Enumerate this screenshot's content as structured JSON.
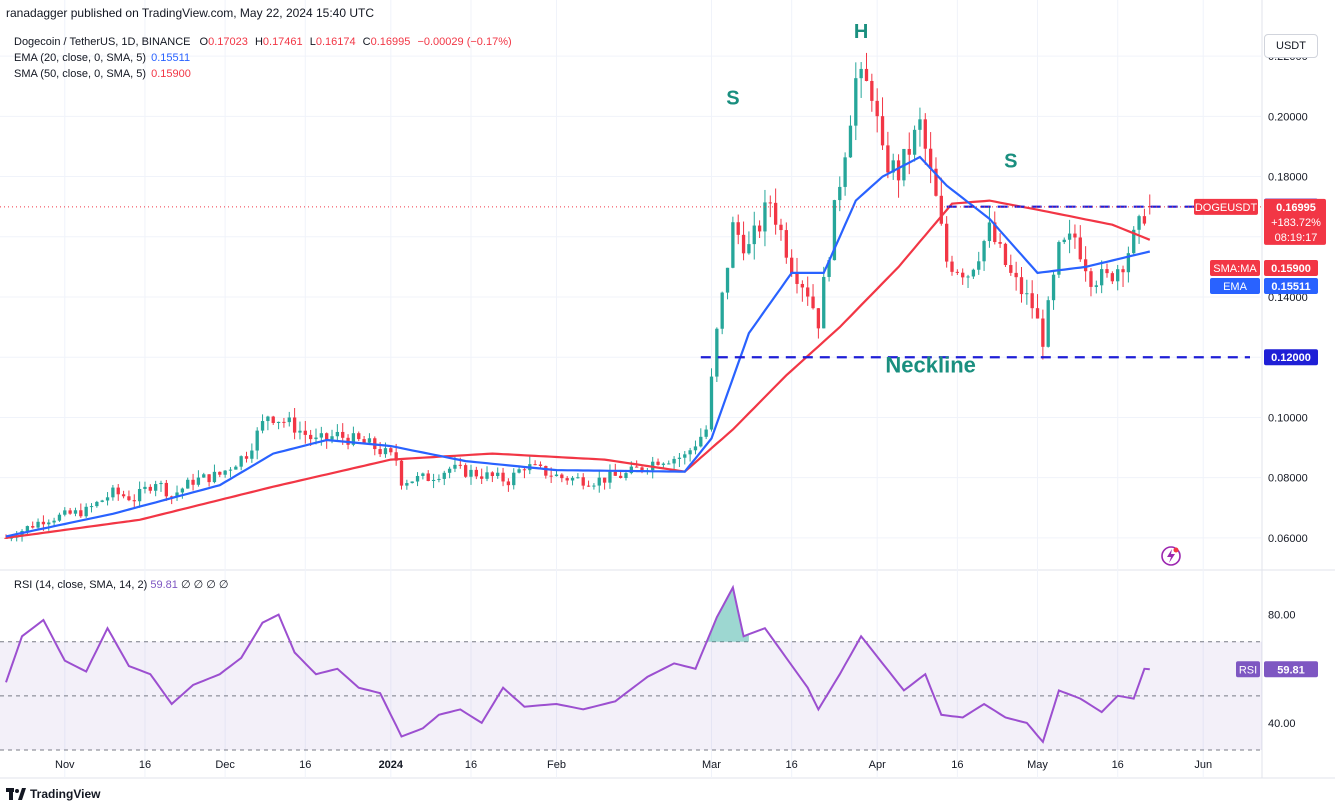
{
  "header": {
    "published": "ranadagger published on TradingView.com, May 22, 2024 15:40 UTC"
  },
  "legend": {
    "symbol": "Dogecoin / TetherUS, 1D, BINANCE",
    "o_label": "O",
    "o": "0.17023",
    "h_label": "H",
    "h": "0.17461",
    "l_label": "L",
    "l": "0.16174",
    "c_label": "C",
    "c": "0.16995",
    "change": "−0.00029 (−0.17%)",
    "ema_label": "EMA (20, close, 0, SMA, 5)",
    "ema_value": "0.15511",
    "sma_label": "SMA (50, close, 0, SMA, 5)",
    "sma_value": "0.15900"
  },
  "rsi_legend": {
    "label": "RSI (14, close, SMA, 14, 2)",
    "value": "59.81",
    "extra": "∅ ∅ ∅ ∅"
  },
  "unit_button": "USDT",
  "footer": {
    "brand": "TradingView"
  },
  "colors": {
    "up": "#26a69a",
    "down": "#f23645",
    "ema": "#2962ff",
    "sma": "#f23645",
    "rsi": "#9c4fd0",
    "annot": "#1a8f7f",
    "neck": "#1f1fd6"
  },
  "chart_data": [
    {
      "type": "candlestick",
      "title": "Dogecoin / TetherUS, 1D, BINANCE",
      "ylim": [
        0.05,
        0.23
      ],
      "y_ticks": [
        0.06,
        0.08,
        0.1,
        0.12,
        0.14,
        0.16,
        0.18,
        0.2,
        0.22
      ],
      "y_tick_labels": [
        "0.06000",
        "0.08000",
        "0.10000",
        "0.12000",
        "0.14000",
        "0.16000",
        "0.18000",
        "0.20000",
        "0.22000"
      ],
      "x_ticks": [
        {
          "date": "2023-11-01",
          "label": "Nov"
        },
        {
          "date": "2023-11-16",
          "label": "16"
        },
        {
          "date": "2023-12-01",
          "label": "Dec"
        },
        {
          "date": "2023-12-16",
          "label": "16"
        },
        {
          "date": "2024-01-01",
          "label": "2024"
        },
        {
          "date": "2024-01-16",
          "label": "16"
        },
        {
          "date": "2024-02-01",
          "label": "Feb"
        },
        {
          "date": "2024-03-01",
          "label": "Mar"
        },
        {
          "date": "2024-03-16",
          "label": "16"
        },
        {
          "date": "2024-04-01",
          "label": "Apr"
        },
        {
          "date": "2024-04-16",
          "label": "16"
        },
        {
          "date": "2024-05-01",
          "label": "May"
        },
        {
          "date": "2024-05-16",
          "label": "16"
        },
        {
          "date": "2024-06-01",
          "label": "Jun"
        }
      ],
      "x_range": [
        "2023-10-21",
        "2024-06-12"
      ],
      "close_anchors": [
        [
          "2023-10-21",
          0.06
        ],
        [
          "2023-10-28",
          0.066
        ],
        [
          "2023-11-05",
          0.069
        ],
        [
          "2023-11-10",
          0.075
        ],
        [
          "2023-11-14",
          0.073
        ],
        [
          "2023-11-18",
          0.079
        ],
        [
          "2023-11-21",
          0.074
        ],
        [
          "2023-11-25",
          0.079
        ],
        [
          "2023-11-30",
          0.081
        ],
        [
          "2023-12-05",
          0.088
        ],
        [
          "2023-12-09",
          0.101
        ],
        [
          "2023-12-13",
          0.098
        ],
        [
          "2023-12-18",
          0.092
        ],
        [
          "2023-12-22",
          0.094
        ],
        [
          "2023-12-28",
          0.091
        ],
        [
          "2024-01-02",
          0.086
        ],
        [
          "2024-01-03",
          0.079
        ],
        [
          "2024-01-08",
          0.08
        ],
        [
          "2024-01-12",
          0.083
        ],
        [
          "2024-01-18",
          0.081
        ],
        [
          "2024-01-23",
          0.079
        ],
        [
          "2024-01-26",
          0.084
        ],
        [
          "2024-02-02",
          0.08
        ],
        [
          "2024-02-08",
          0.079
        ],
        [
          "2024-02-14",
          0.081
        ],
        [
          "2024-02-20",
          0.086
        ],
        [
          "2024-02-25",
          0.087
        ],
        [
          "2024-02-29",
          0.096
        ],
        [
          "2024-03-02",
          0.128
        ],
        [
          "2024-03-05",
          0.163
        ],
        [
          "2024-03-08",
          0.156
        ],
        [
          "2024-03-12",
          0.172
        ],
        [
          "2024-03-16",
          0.151
        ],
        [
          "2024-03-19",
          0.142
        ],
        [
          "2024-03-21",
          0.132
        ],
        [
          "2024-03-24",
          0.168
        ],
        [
          "2024-03-28",
          0.212
        ],
        [
          "2024-03-31",
          0.209
        ],
        [
          "2024-04-02",
          0.186
        ],
        [
          "2024-04-05",
          0.181
        ],
        [
          "2024-04-09",
          0.197
        ],
        [
          "2024-04-12",
          0.172
        ],
        [
          "2024-04-14",
          0.152
        ],
        [
          "2024-04-18",
          0.148
        ],
        [
          "2024-04-22",
          0.162
        ],
        [
          "2024-04-26",
          0.147
        ],
        [
          "2024-04-30",
          0.137
        ],
        [
          "2024-05-02",
          0.126
        ],
        [
          "2024-05-05",
          0.155
        ],
        [
          "2024-05-08",
          0.16
        ],
        [
          "2024-05-11",
          0.147
        ],
        [
          "2024-05-14",
          0.146
        ],
        [
          "2024-05-17",
          0.152
        ],
        [
          "2024-05-20",
          0.163
        ],
        [
          "2024-05-21",
          0.168
        ],
        [
          "2024-05-22",
          0.16995
        ]
      ],
      "ema20": [
        [
          "2023-10-21",
          0.0605
        ],
        [
          "2023-11-10",
          0.068
        ],
        [
          "2023-11-30",
          0.0775
        ],
        [
          "2023-12-10",
          0.088
        ],
        [
          "2023-12-20",
          0.0925
        ],
        [
          "2024-01-01",
          0.0905
        ],
        [
          "2024-01-15",
          0.0855
        ],
        [
          "2024-02-01",
          0.0825
        ],
        [
          "2024-02-25",
          0.082
        ],
        [
          "2024-03-01",
          0.093
        ],
        [
          "2024-03-08",
          0.128
        ],
        [
          "2024-03-16",
          0.148
        ],
        [
          "2024-03-22",
          0.148
        ],
        [
          "2024-03-28",
          0.172
        ],
        [
          "2024-04-02",
          0.18
        ],
        [
          "2024-04-09",
          0.1865
        ],
        [
          "2024-04-14",
          0.177
        ],
        [
          "2024-04-22",
          0.166
        ],
        [
          "2024-05-01",
          0.148
        ],
        [
          "2024-05-10",
          0.15
        ],
        [
          "2024-05-22",
          0.15511
        ]
      ],
      "sma50": [
        [
          "2023-10-21",
          0.06
        ],
        [
          "2023-11-15",
          0.066
        ],
        [
          "2023-12-10",
          0.077
        ],
        [
          "2024-01-01",
          0.086
        ],
        [
          "2024-01-20",
          0.088
        ],
        [
          "2024-02-10",
          0.086
        ],
        [
          "2024-02-25",
          0.082
        ],
        [
          "2024-03-05",
          0.096
        ],
        [
          "2024-03-15",
          0.114
        ],
        [
          "2024-03-25",
          0.13
        ],
        [
          "2024-04-05",
          0.15
        ],
        [
          "2024-04-15",
          0.171
        ],
        [
          "2024-04-22",
          0.172
        ],
        [
          "2024-05-01",
          0.169
        ],
        [
          "2024-05-15",
          0.164
        ],
        [
          "2024-05-22",
          0.159
        ]
      ],
      "horizontal_lines": [
        {
          "value": 0.17,
          "label": "0.17000",
          "start": "2024-04-14"
        },
        {
          "value": 0.12,
          "label": "0.12000",
          "start": "2024-02-28"
        }
      ],
      "price_labels": [
        {
          "name": "DOGEUSDT",
          "value": 0.16995,
          "text": "0.16995",
          "change": "+183.72%",
          "timer": "08:19:17",
          "color": "#f23645"
        },
        {
          "name": "SMA:MA",
          "value": 0.159,
          "text": "0.15900",
          "color": "#f23645"
        },
        {
          "name": "EMA",
          "value": 0.15511,
          "text": "0.15511",
          "color": "#2962ff"
        }
      ],
      "annotations": [
        {
          "text": "S",
          "date": "2024-03-05",
          "value": 0.204
        },
        {
          "text": "H",
          "date": "2024-03-29",
          "value": 0.226
        },
        {
          "text": "S",
          "date": "2024-04-26",
          "value": 0.183
        },
        {
          "text": "Neckline",
          "date": "2024-04-11",
          "value": 0.115
        }
      ]
    },
    {
      "type": "line",
      "title": "RSI (14, close, SMA, 14, 2)",
      "ylim": [
        30,
        95
      ],
      "levels": [
        70,
        50,
        30
      ],
      "y_tick_labels": [
        {
          "value": 80,
          "label": "80.00"
        },
        {
          "value": 40,
          "label": "40.00"
        }
      ],
      "last_value": 59.81,
      "series": [
        [
          "2023-10-21",
          55
        ],
        [
          "2023-10-24",
          72
        ],
        [
          "2023-10-28",
          78
        ],
        [
          "2023-11-01",
          63
        ],
        [
          "2023-11-05",
          59
        ],
        [
          "2023-11-09",
          75
        ],
        [
          "2023-11-13",
          61
        ],
        [
          "2023-11-17",
          58
        ],
        [
          "2023-11-21",
          47
        ],
        [
          "2023-11-25",
          54
        ],
        [
          "2023-11-30",
          58
        ],
        [
          "2023-12-04",
          64
        ],
        [
          "2023-12-08",
          77
        ],
        [
          "2023-12-11",
          80
        ],
        [
          "2023-12-14",
          66
        ],
        [
          "2023-12-18",
          58
        ],
        [
          "2023-12-22",
          60
        ],
        [
          "2023-12-26",
          53
        ],
        [
          "2023-12-30",
          51
        ],
        [
          "2024-01-03",
          35
        ],
        [
          "2024-01-07",
          38
        ],
        [
          "2024-01-10",
          43
        ],
        [
          "2024-01-14",
          45
        ],
        [
          "2024-01-18",
          40
        ],
        [
          "2024-01-22",
          53
        ],
        [
          "2024-01-26",
          46
        ],
        [
          "2024-02-01",
          47
        ],
        [
          "2024-02-06",
          45
        ],
        [
          "2024-02-12",
          48
        ],
        [
          "2024-02-18",
          57
        ],
        [
          "2024-02-23",
          62
        ],
        [
          "2024-02-27",
          60
        ],
        [
          "2024-03-02",
          79
        ],
        [
          "2024-03-05",
          90
        ],
        [
          "2024-03-07",
          72
        ],
        [
          "2024-03-11",
          75
        ],
        [
          "2024-03-15",
          64
        ],
        [
          "2024-03-19",
          53
        ],
        [
          "2024-03-21",
          45
        ],
        [
          "2024-03-25",
          58
        ],
        [
          "2024-03-29",
          72
        ],
        [
          "2024-04-02",
          62
        ],
        [
          "2024-04-06",
          52
        ],
        [
          "2024-04-10",
          58
        ],
        [
          "2024-04-13",
          43
        ],
        [
          "2024-04-17",
          42
        ],
        [
          "2024-04-21",
          47
        ],
        [
          "2024-04-25",
          42
        ],
        [
          "2024-04-29",
          40
        ],
        [
          "2024-05-02",
          33
        ],
        [
          "2024-05-05",
          52
        ],
        [
          "2024-05-09",
          49
        ],
        [
          "2024-05-13",
          44
        ],
        [
          "2024-05-16",
          50
        ],
        [
          "2024-05-19",
          49
        ],
        [
          "2024-05-21",
          60
        ],
        [
          "2024-05-22",
          59.81
        ]
      ]
    }
  ]
}
